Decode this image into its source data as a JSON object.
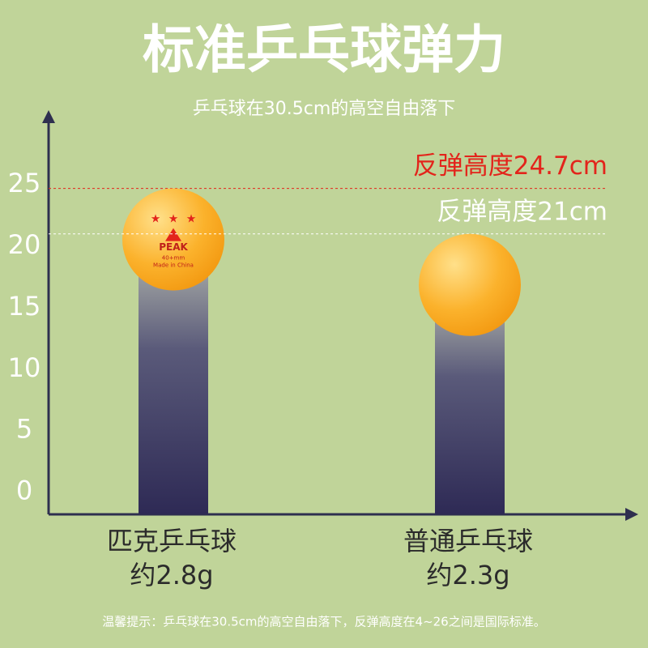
{
  "chart_data": {
    "type": "bar",
    "title": "标准乒乓球弹力",
    "subtitle": "乒乓球在30.5cm的高空自由落下",
    "categories": [
      "匹克乒乓球",
      "普通乒乓球"
    ],
    "sublabels": [
      "约2.8g",
      "约2.3g"
    ],
    "values": [
      24.7,
      21
    ],
    "value_labels": [
      "反弹高度24.7cm",
      "反弹高度21cm"
    ],
    "label_colors": [
      "#e3241b",
      "#ffffff"
    ],
    "ylim": [
      -1.8,
      30.8
    ],
    "yticks": [
      0,
      5,
      10,
      15,
      20,
      25
    ],
    "ball_print": [
      "PEAK",
      "40+mm",
      "Made in China"
    ],
    "footnote": "温馨提示：乒乓球在30.5cm的高空自由落下，反弹高度在4~26之间是国际标准。"
  }
}
